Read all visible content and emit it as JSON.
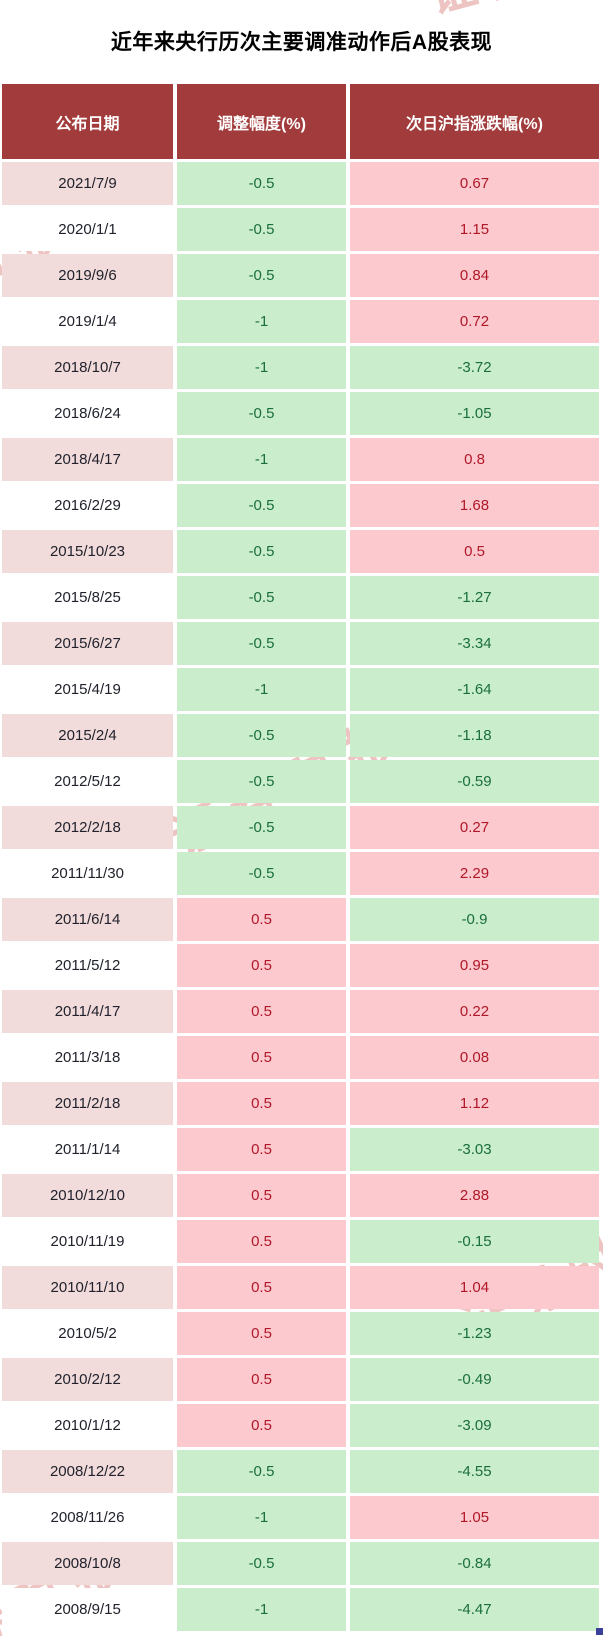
{
  "colors": {
    "header_bg": "#a23b3b",
    "header_text": "#ffffff",
    "date_row_pink": "#f2dbdb",
    "date_row_white": "#ffffff",
    "date_text": "#20222c",
    "positive_bg": "#fcc9cf",
    "positive_text": "#b01828",
    "negative_bg": "#caedcc",
    "negative_text": "#1a6e3c",
    "watermark": "#dd8b84",
    "title_text": "#000000",
    "corner_handle": "#3a3f99"
  },
  "watermark": {
    "text": "证券时报"
  },
  "chart_data": {
    "type": "table",
    "title": "近年来央行历次主要调准动作后A股表现",
    "columns": [
      "公布日期",
      "调整幅度(%)",
      "次日沪指涨跌幅(%)"
    ],
    "color_coding": "negative values shown green, positive values shown red on pink",
    "rows": [
      [
        "2021/7/9",
        -0.5,
        0.67
      ],
      [
        "2020/1/1",
        -0.5,
        1.15
      ],
      [
        "2019/9/6",
        -0.5,
        0.84
      ],
      [
        "2019/1/4",
        -1,
        0.72
      ],
      [
        "2018/10/7",
        -1,
        -3.72
      ],
      [
        "2018/6/24",
        -0.5,
        -1.05
      ],
      [
        "2018/4/17",
        -1,
        0.8
      ],
      [
        "2016/2/29",
        -0.5,
        1.68
      ],
      [
        "2015/10/23",
        -0.5,
        0.5
      ],
      [
        "2015/8/25",
        -0.5,
        -1.27
      ],
      [
        "2015/6/27",
        -0.5,
        -3.34
      ],
      [
        "2015/4/19",
        -1,
        -1.64
      ],
      [
        "2015/2/4",
        -0.5,
        -1.18
      ],
      [
        "2012/5/12",
        -0.5,
        -0.59
      ],
      [
        "2012/2/18",
        -0.5,
        0.27
      ],
      [
        "2011/11/30",
        -0.5,
        2.29
      ],
      [
        "2011/6/14",
        0.5,
        -0.9
      ],
      [
        "2011/5/12",
        0.5,
        0.95
      ],
      [
        "2011/4/17",
        0.5,
        0.22
      ],
      [
        "2011/3/18",
        0.5,
        0.08
      ],
      [
        "2011/2/18",
        0.5,
        1.12
      ],
      [
        "2011/1/14",
        0.5,
        -3.03
      ],
      [
        "2010/12/10",
        0.5,
        2.88
      ],
      [
        "2010/11/19",
        0.5,
        -0.15
      ],
      [
        "2010/11/10",
        0.5,
        1.04
      ],
      [
        "2010/5/2",
        0.5,
        -1.23
      ],
      [
        "2010/2/12",
        0.5,
        -0.49
      ],
      [
        "2010/1/12",
        0.5,
        -3.09
      ],
      [
        "2008/12/22",
        -0.5,
        -4.55
      ],
      [
        "2008/11/26",
        -1,
        1.05
      ],
      [
        "2008/10/8",
        -0.5,
        -0.84
      ],
      [
        "2008/9/15",
        -1,
        -4.47
      ]
    ]
  }
}
